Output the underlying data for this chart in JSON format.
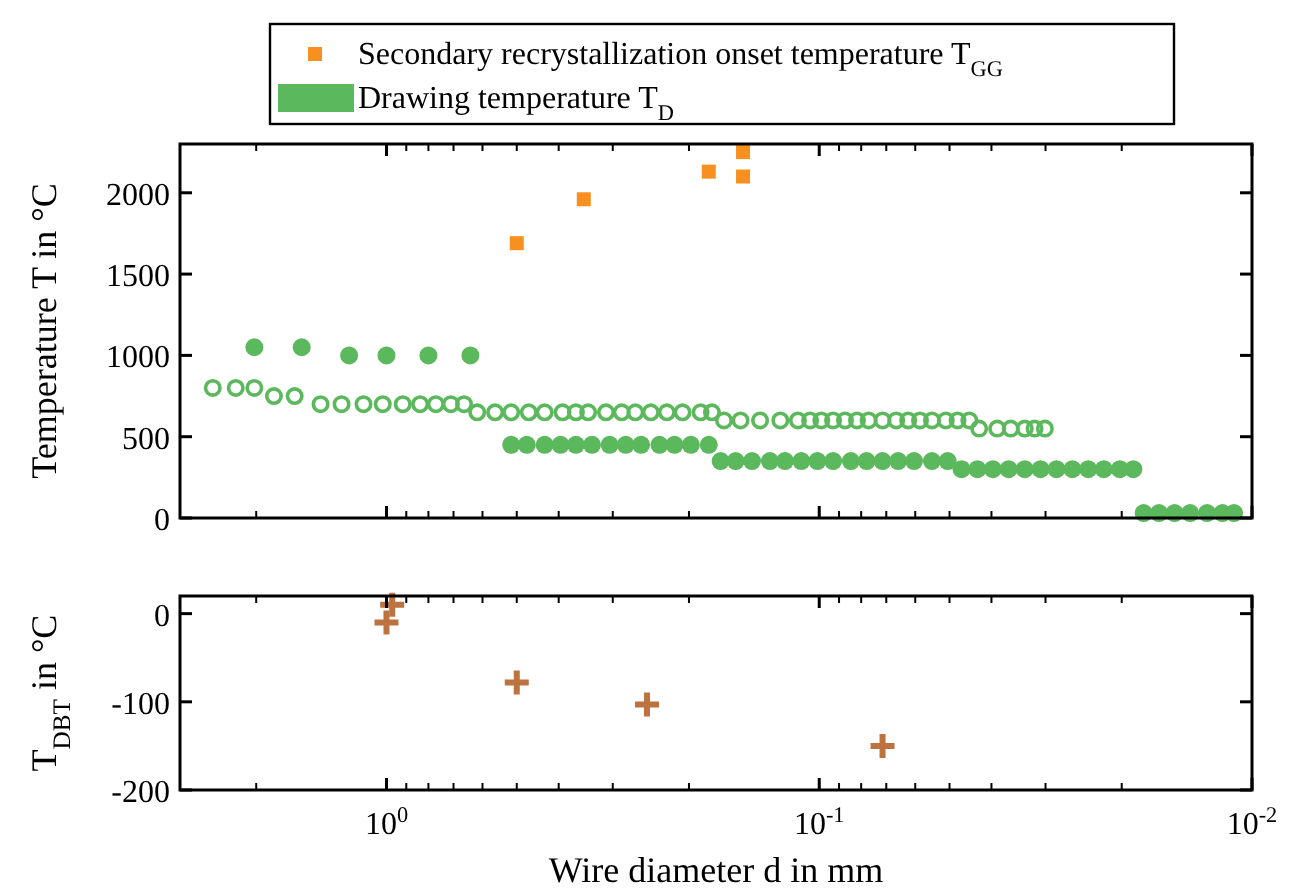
{
  "chart_data": [
    {
      "type": "scatter",
      "ylabel": "Temperature T in °C",
      "log": "x",
      "xlim": [
        3,
        0.01
      ],
      "ylim": [
        0,
        2300
      ],
      "yticks": [
        0,
        500,
        1000,
        1500,
        2000
      ],
      "xticks": [
        {
          "value": 3,
          "label": null
        },
        {
          "value": 2,
          "label": null
        },
        {
          "value": 1,
          "label": null
        },
        {
          "value": 0.9,
          "label": null
        },
        {
          "value": 0.8,
          "label": null
        },
        {
          "value": 0.7,
          "label": null
        },
        {
          "value": 0.6,
          "label": null
        },
        {
          "value": 0.5,
          "label": null
        },
        {
          "value": 0.4,
          "label": null
        },
        {
          "value": 0.3,
          "label": null
        },
        {
          "value": 0.2,
          "label": null
        },
        {
          "value": 0.1,
          "label": null
        },
        {
          "value": 0.09,
          "label": null
        },
        {
          "value": 0.08,
          "label": null
        },
        {
          "value": 0.07,
          "label": null
        },
        {
          "value": 0.06,
          "label": null
        },
        {
          "value": 0.05,
          "label": null
        },
        {
          "value": 0.04,
          "label": null
        },
        {
          "value": 0.03,
          "label": null
        },
        {
          "value": 0.02,
          "label": null
        },
        {
          "value": 0.01,
          "label": null
        }
      ],
      "tick_labels": "y",
      "legend": "top",
      "grid": false,
      "series": [
        {
          "name": "Secondary recrystallization onset temperature T$_{GG}$",
          "color": "#f7901e",
          "marker": "square",
          "x": [
            0.5,
            0.35,
            0.18,
            0.15,
            0.15
          ],
          "values": [
            1690,
            1960,
            2130,
            2250,
            2100
          ]
        },
        {
          "name": "Drawing temperature T$_{D}$",
          "color": "#5cb85c",
          "marker": "circle",
          "x": [
            2.02,
            1.57,
            1.22,
            1.0,
            0.8,
            0.64,
            0.515,
            0.474,
            0.431,
            0.396,
            0.365,
            0.335,
            0.305,
            0.28,
            0.258,
            0.234,
            0.216,
            0.198,
            0.18,
            0.169,
            0.156,
            0.143,
            0.13,
            0.12,
            0.11,
            0.101,
            0.0929,
            0.0845,
            0.0777,
            0.0714,
            0.0657,
            0.0604,
            0.0549,
            0.0505,
            0.0469,
            0.0431,
            0.0397,
            0.0365,
            0.0335,
            0.0308,
            0.0283,
            0.026,
            0.0239,
            0.022,
            0.0202,
            0.0188,
            0.0178,
            0.0164,
            0.0151,
            0.0139,
            0.0127,
            0.0117,
            0.011
          ],
          "values": [
            1050,
            1050,
            1000,
            1000,
            1000,
            1000,
            450,
            450,
            450,
            450,
            450,
            450,
            450,
            450,
            450,
            450,
            450,
            450,
            450,
            350,
            350,
            350,
            350,
            350,
            350,
            350,
            350,
            350,
            350,
            350,
            350,
            350,
            350,
            350,
            300,
            300,
            300,
            300,
            300,
            300,
            300,
            300,
            300,
            300,
            300,
            300,
            30,
            30,
            30,
            30,
            30,
            30,
            30
          ]
        },
        {
          "color": "#5cb85c",
          "marker": "circle",
          "x": [
            2.52,
            2.23,
            2.02,
            1.82,
            1.63,
            1.42,
            1.27,
            1.13,
            1.02,
            0.917,
            0.836,
            0.769,
            0.71,
            0.662,
            0.617,
            0.561,
            0.515,
            0.469,
            0.431,
            0.392,
            0.365,
            0.342,
            0.311,
            0.286,
            0.266,
            0.245,
            0.225,
            0.207,
            0.188,
            0.177,
            0.166,
            0.152,
            0.137,
            0.123,
            0.112,
            0.105,
            0.0989,
            0.0929,
            0.0872,
            0.0818,
            0.0769,
            0.0714,
            0.0664,
            0.0623,
            0.0585,
            0.0549,
            0.051,
            0.0479,
            0.045,
            0.0427,
            0.0388,
            0.0361,
            0.0335,
            0.0318,
            0.0301
          ],
          "values": [
            800,
            800,
            800,
            750,
            750,
            700,
            700,
            700,
            700,
            700,
            700,
            700,
            700,
            700,
            650,
            650,
            650,
            650,
            650,
            650,
            650,
            650,
            650,
            650,
            650,
            650,
            650,
            650,
            650,
            650,
            600,
            600,
            600,
            600,
            600,
            600,
            600,
            600,
            600,
            600,
            600,
            600,
            600,
            600,
            600,
            600,
            600,
            600,
            600,
            550,
            550,
            550,
            550,
            550,
            550
          ]
        }
      ]
    },
    {
      "type": "scatter",
      "ylabel": "T$_{DBT}$ in °C",
      "xlabel": "Wire diameter d in mm",
      "log": "x",
      "xlim": [
        3,
        0.01
      ],
      "ylim": [
        -200,
        20
      ],
      "yticks": [
        -200,
        -100,
        0
      ],
      "xticks": [
        {
          "value": 3,
          "label": null
        },
        {
          "value": 2,
          "label": null
        },
        {
          "value": 1,
          "label": "10$^{0}$"
        },
        {
          "value": 0.9,
          "label": null
        },
        {
          "value": 0.8,
          "label": null
        },
        {
          "value": 0.7,
          "label": null
        },
        {
          "value": 0.6,
          "label": null
        },
        {
          "value": 0.5,
          "label": null
        },
        {
          "value": 0.4,
          "label": null
        },
        {
          "value": 0.3,
          "label": null
        },
        {
          "value": 0.2,
          "label": null
        },
        {
          "value": 0.1,
          "label": "10$^{-1}$"
        },
        {
          "value": 0.09,
          "label": null
        },
        {
          "value": 0.08,
          "label": null
        },
        {
          "value": 0.07,
          "label": null
        },
        {
          "value": 0.06,
          "label": null
        },
        {
          "value": 0.05,
          "label": null
        },
        {
          "value": 0.04,
          "label": null
        },
        {
          "value": 0.03,
          "label": null
        },
        {
          "value": 0.02,
          "label": null
        },
        {
          "value": 0.01,
          "label": "10$^{-2}$"
        }
      ],
      "grid": false,
      "series": [
        {
          "color": "#bd7340",
          "marker": "cross",
          "x": [
            1.0,
            0.97,
            0.5,
            0.25,
            0.0714
          ],
          "values": [
            -10,
            10,
            -78,
            -103,
            -150
          ]
        }
      ]
    }
  ]
}
